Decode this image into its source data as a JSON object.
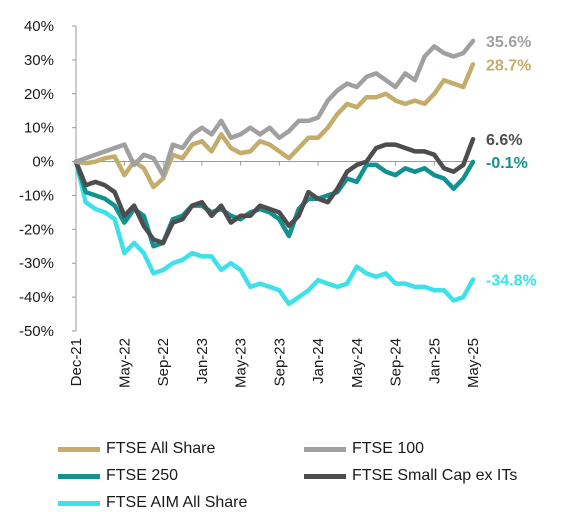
{
  "chart_data": {
    "type": "line",
    "ylim": [
      -50,
      40
    ],
    "yticks": [
      -50,
      -40,
      -30,
      -20,
      -10,
      0,
      10,
      20,
      30,
      40
    ],
    "ytick_labels": [
      "-50%",
      "-40%",
      "-30%",
      "-20%",
      "-10%",
      "0%",
      "10%",
      "20%",
      "30%",
      "40%"
    ],
    "xtick_labels": [
      "Dec-21",
      "May-22",
      "Sep-22",
      "Jan-23",
      "May-23",
      "Sep-23",
      "Jan-24",
      "May-24",
      "Sep-24",
      "Jan-25",
      "May-25"
    ],
    "x_months": [
      "Dec-21",
      "Jan-22",
      "Feb-22",
      "Mar-22",
      "Apr-22",
      "May-22",
      "Jun-22",
      "Jul-22",
      "Aug-22",
      "Sep-22",
      "Oct-22",
      "Nov-22",
      "Dec-22",
      "Jan-23",
      "Feb-23",
      "Mar-23",
      "Apr-23",
      "May-23",
      "Jun-23",
      "Jul-23",
      "Aug-23",
      "Sep-23",
      "Oct-23",
      "Nov-23",
      "Dec-23",
      "Jan-24",
      "Feb-24",
      "Mar-24",
      "Apr-24",
      "May-24",
      "Jun-24",
      "Jul-24",
      "Aug-24",
      "Sep-24",
      "Oct-24",
      "Nov-24",
      "Dec-24",
      "Jan-25",
      "Feb-25",
      "Mar-25",
      "Apr-25",
      "May-25"
    ],
    "legend_position": "bottom",
    "series": [
      {
        "name": "FTSE All Share",
        "color": "#C4AC6A",
        "end_label": "28.7%",
        "values": [
          0,
          -0.5,
          0,
          1,
          1.5,
          -4,
          0,
          -2,
          -7.5,
          -5,
          2,
          1,
          5,
          6,
          3,
          8,
          4,
          2.5,
          3,
          6,
          5,
          3,
          1,
          4,
          7,
          7,
          10,
          14,
          17,
          16,
          19,
          19,
          20,
          18,
          17,
          18,
          17,
          20,
          24,
          23,
          22,
          28.7
        ]
      },
      {
        "name": "FTSE 100",
        "color": "#A0A0A0",
        "end_label": "35.6%",
        "values": [
          0,
          1,
          2,
          3,
          4,
          5,
          -1,
          2,
          1,
          -4,
          5,
          4,
          8,
          10,
          8,
          12,
          7,
          8,
          10,
          8,
          10,
          7,
          9,
          12,
          12,
          13,
          18,
          21,
          23,
          22,
          25,
          26,
          24,
          22,
          26,
          24,
          31,
          34,
          32,
          31,
          32,
          35.6
        ]
      },
      {
        "name": "FTSE 250",
        "color": "#13918F",
        "end_label": "-0.1%",
        "values": [
          0,
          -9,
          -10,
          -11,
          -13,
          -18,
          -14,
          -16,
          -25,
          -24,
          -17,
          -16,
          -13,
          -13,
          -15,
          -14,
          -16,
          -17,
          -15,
          -14,
          -15,
          -17,
          -22,
          -14,
          -11,
          -11,
          -10,
          -9,
          -5,
          -6,
          -1,
          -1,
          -3,
          -4,
          -2,
          -3,
          -2,
          -4,
          -5,
          -8,
          -5,
          -0.1
        ]
      },
      {
        "name": "FTSE Small Cap ex ITs",
        "color": "#4D4D4D",
        "end_label": "6.6%",
        "values": [
          0,
          -7,
          -6,
          -7,
          -9,
          -16,
          -13,
          -19,
          -23,
          -24,
          -18,
          -17,
          -13,
          -12,
          -16,
          -13,
          -18,
          -16,
          -16,
          -13,
          -14,
          -15,
          -19,
          -16,
          -9,
          -11,
          -12,
          -8,
          -3,
          -1,
          0,
          4,
          5,
          5,
          4,
          3,
          3,
          2,
          -2,
          -3,
          -1,
          6.6
        ]
      },
      {
        "name": "FTSE AIM All Share",
        "color": "#3EE1EA",
        "end_label": "-34.8%",
        "values": [
          0,
          -12,
          -14,
          -15,
          -17,
          -27,
          -24,
          -27,
          -33,
          -32,
          -30,
          -29,
          -27,
          -28,
          -28,
          -32,
          -30,
          -32,
          -37,
          -36,
          -37,
          -38,
          -42,
          -40,
          -38,
          -35,
          -36,
          -37,
          -36,
          -31,
          -33,
          -34,
          -33,
          -36,
          -36,
          -37,
          -37,
          -38,
          -38,
          -41,
          -40,
          -34.8
        ]
      }
    ]
  },
  "legend": {
    "items": [
      {
        "label": "FTSE All Share",
        "color": "#C4AC6A"
      },
      {
        "label": "FTSE 100",
        "color": "#A0A0A0"
      },
      {
        "label": "FTSE 250",
        "color": "#13918F"
      },
      {
        "label": "FTSE Small Cap ex ITs",
        "color": "#4D4D4D"
      },
      {
        "label": "FTSE AIM All Share",
        "color": "#3EE1EA"
      }
    ]
  }
}
